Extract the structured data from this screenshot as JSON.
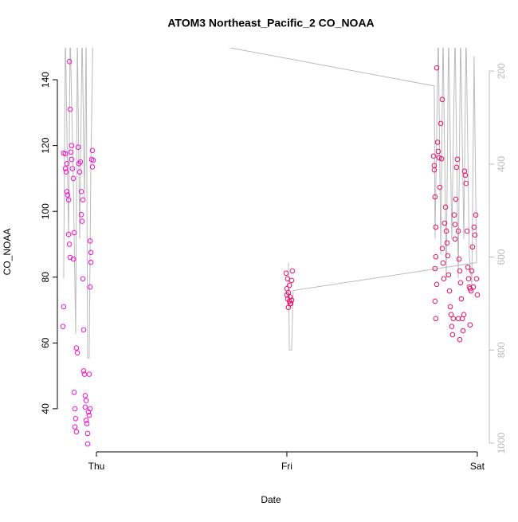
{
  "chart_data": {
    "type": "scatter",
    "title": "ATOM3 Northeast_Pacific_2 CO_NOAA",
    "xlabel": "Date",
    "ylabel": "CO_NOAA",
    "xlim": [
      -0.205,
      2.063
    ],
    "xticks": [
      {
        "value": 0,
        "label": "Thu"
      },
      {
        "value": 1,
        "label": "Fri"
      },
      {
        "value": 2,
        "label": "Sat"
      }
    ],
    "ylim": [
      26.9,
      149.7
    ],
    "yticks": [
      40,
      60,
      80,
      100,
      120,
      140
    ],
    "y2lim": [
      1019,
      150
    ],
    "y2ticks": [
      200,
      400,
      600,
      800,
      1000
    ],
    "series": [
      {
        "color": "#f010d0",
        "x": [
          -0.172,
          -0.163,
          -0.172,
          -0.176,
          -0.159,
          -0.155,
          -0.151,
          -0.146,
          -0.146,
          -0.142,
          -0.138,
          -0.142,
          -0.138,
          -0.134,
          -0.13,
          -0.126,
          -0.121,
          -0.117,
          -0.121,
          -0.117,
          -0.113,
          -0.109,
          -0.113,
          -0.105,
          -0.105,
          -0.1,
          -0.096,
          -0.092,
          -0.088,
          -0.084,
          -0.079,
          -0.075,
          -0.079,
          -0.071,
          -0.071,
          -0.067,
          -0.067,
          -0.063,
          -0.059,
          -0.054,
          -0.059,
          -0.054,
          -0.05,
          -0.046,
          -0.046,
          -0.042,
          -0.038,
          -0.033,
          -0.038,
          -0.033,
          -0.029,
          -0.029,
          -0.033,
          -0.025,
          -0.021,
          -0.017,
          -0.021,
          -0.163,
          -0.155,
          -0.13
        ],
        "values": [
          117.7,
          117.5,
          71,
          65,
          112,
          106,
          105,
          103.5,
          93,
          90,
          86,
          145.5,
          131,
          118,
          115.8,
          113,
          110,
          93.5,
          85.5,
          45,
          40,
          37,
          34.5,
          33,
          58.5,
          57,
          119.5,
          114.5,
          112,
          115,
          99,
          97,
          106,
          103.5,
          79.5,
          64,
          51.5,
          50.5,
          44,
          42.5,
          40.5,
          36.5,
          35.5,
          32.5,
          29.3,
          39,
          38,
          40,
          50.5,
          91,
          87.5,
          84.5,
          77,
          115.8,
          118.5,
          115.5,
          113.5,
          113,
          114.5,
          120
        ]
      },
      {
        "color": "#e8106e",
        "x": [
          0.996,
          1.004,
          1.013,
          1.0,
          1.008,
          1.017,
          1.004,
          1.013,
          1.021,
          1.008,
          1.025,
          1.029,
          1.025,
          1.017,
          1.0,
          1.77,
          1.774,
          1.774,
          1.778,
          1.782,
          1.782,
          1.778,
          1.787,
          1.778,
          1.782,
          1.787,
          1.791,
          1.795,
          1.799,
          1.803,
          1.808,
          1.816,
          1.812,
          1.816,
          1.82,
          1.824,
          1.828,
          1.833,
          1.837,
          1.841,
          1.845,
          1.849,
          1.854,
          1.858,
          1.862,
          1.866,
          1.87,
          1.874,
          1.879,
          1.883,
          1.887,
          1.891,
          1.895,
          1.9,
          1.904,
          1.908,
          1.912,
          1.916,
          1.921,
          1.925,
          1.929,
          1.933,
          1.937,
          1.941,
          1.946,
          1.95,
          1.954,
          1.958,
          1.962,
          1.967,
          1.971,
          1.975,
          1.979,
          1.983,
          1.987,
          1.992,
          1.996,
          2.0,
          1.9,
          1.908,
          1.962,
          1.883
        ],
        "values": [
          81.2,
          79.5,
          77.5,
          76.5,
          75.3,
          74,
          73.4,
          72.7,
          72,
          70.8,
          73,
          81.9,
          79,
          71.9,
          74.6,
          116.8,
          113.9,
          112.6,
          104.4,
          95.2,
          86.2,
          82.6,
          77.8,
          72.7,
          67.4,
          143.6,
          121,
          118.2,
          116.3,
          107.3,
          126.7,
          134,
          116,
          88.7,
          84.3,
          79.5,
          96.4,
          101.3,
          94,
          90.4,
          86.5,
          80.7,
          75.8,
          71,
          68.6,
          65,
          62.5,
          67.4,
          98.9,
          91.6,
          103.7,
          113.4,
          115.8,
          94,
          85.5,
          81.9,
          78.3,
          73.4,
          67.4,
          63.7,
          68.6,
          112.2,
          111,
          108.5,
          94,
          83,
          79.5,
          77,
          76.5,
          75.8,
          81.9,
          89.2,
          77,
          95.2,
          92.8,
          98.9,
          79.5,
          74.6,
          67.4,
          61,
          65.5,
          96
        ]
      }
    ],
    "line": {
      "color": "#bbbbbb",
      "axis": "y2",
      "x": [
        -0.172,
        -0.163,
        -0.146,
        -0.138,
        -0.121,
        -0.109,
        -0.1,
        -0.088,
        -0.075,
        -0.063,
        -0.054,
        -0.046,
        -0.038,
        -0.029,
        -0.017,
        1.774,
        1.778,
        1.795,
        1.808,
        1.82,
        1.837,
        1.849,
        1.866,
        1.883,
        1.9,
        1.912,
        1.929,
        1.941,
        1.958,
        1.971,
        1.983,
        1.996,
        1.033,
        1.025,
        1.013,
        1.008
      ],
      "values": [
        646,
        116,
        561,
        116,
        441,
        766,
        116,
        561,
        116,
        475,
        116,
        817,
        817,
        390,
        95,
        232,
        561,
        116,
        595,
        116,
        646,
        116,
        561,
        116,
        646,
        116,
        561,
        116,
        595,
        663,
        168,
        612,
        672,
        800,
        800,
        612
      ]
    }
  }
}
